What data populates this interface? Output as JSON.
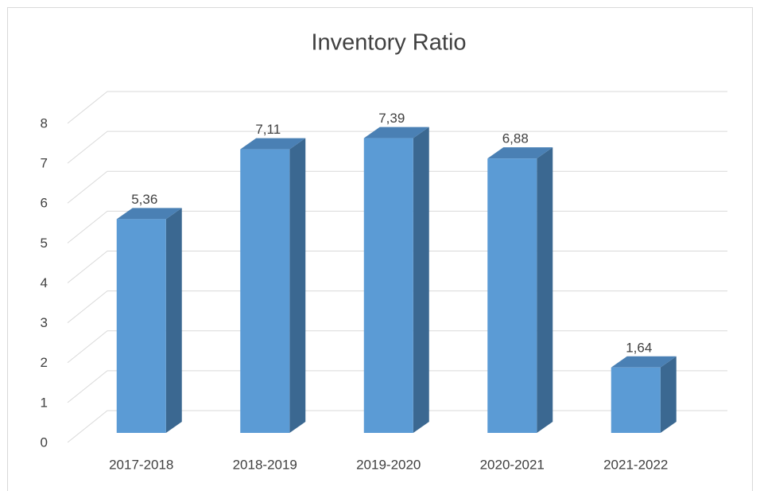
{
  "chart_data": {
    "type": "bar3d",
    "title": "Inventory Ratio",
    "categories": [
      "2017-2018",
      "2018-2019",
      "2019-2020",
      "2020-2021",
      "2021-2022"
    ],
    "values": [
      5.36,
      7.11,
      7.39,
      6.88,
      1.64
    ],
    "value_labels": [
      "5,36",
      "7,11",
      "7,39",
      "6,88",
      "1,64"
    ],
    "color": "#5b9bd5",
    "ylim": [
      0,
      8
    ],
    "yticks": [
      0,
      1,
      2,
      3,
      4,
      5,
      6,
      7,
      8
    ],
    "grid": true
  }
}
